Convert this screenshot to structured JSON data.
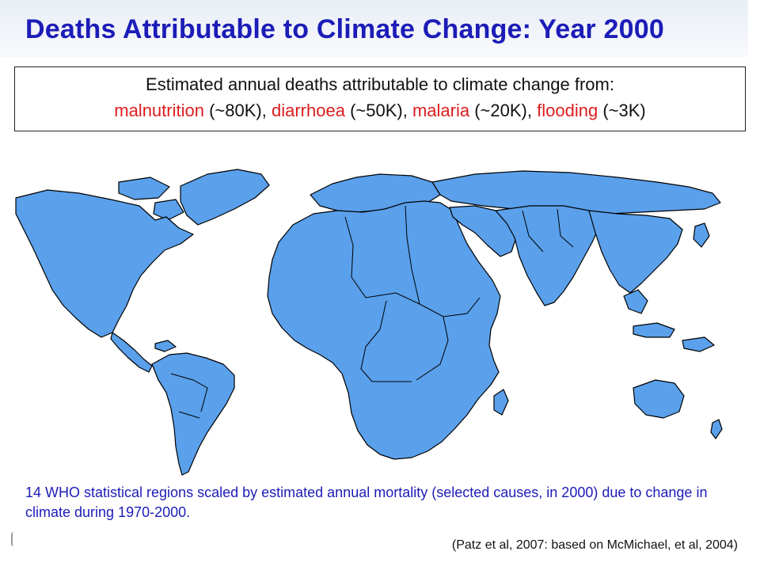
{
  "title": "Deaths Attributable to Climate Change: Year 2000",
  "summary": {
    "intro": "Estimated annual deaths attributable to climate change from:",
    "causes": [
      {
        "name": "malnutrition",
        "amount": "(~80K)"
      },
      {
        "name": "diarrhoea",
        "amount": "(~50K)"
      },
      {
        "name": "malaria",
        "amount": "(~20K)"
      },
      {
        "name": "flooding",
        "amount": "(~3K)"
      }
    ]
  },
  "map": {
    "fill_color": "#5aa0eb",
    "border_color": "#000000"
  },
  "caption": "14 WHO statistical regions scaled by estimated annual mortality (selected causes, in 2000) due to change in climate during 1970-2000.",
  "citation": "(Patz et al, 2007: based on McMichael, et al, 2004)",
  "colors": {
    "title": "#1c1cb8",
    "cause_highlight": "#dd1d1d",
    "caption": "#1c1cb8"
  }
}
